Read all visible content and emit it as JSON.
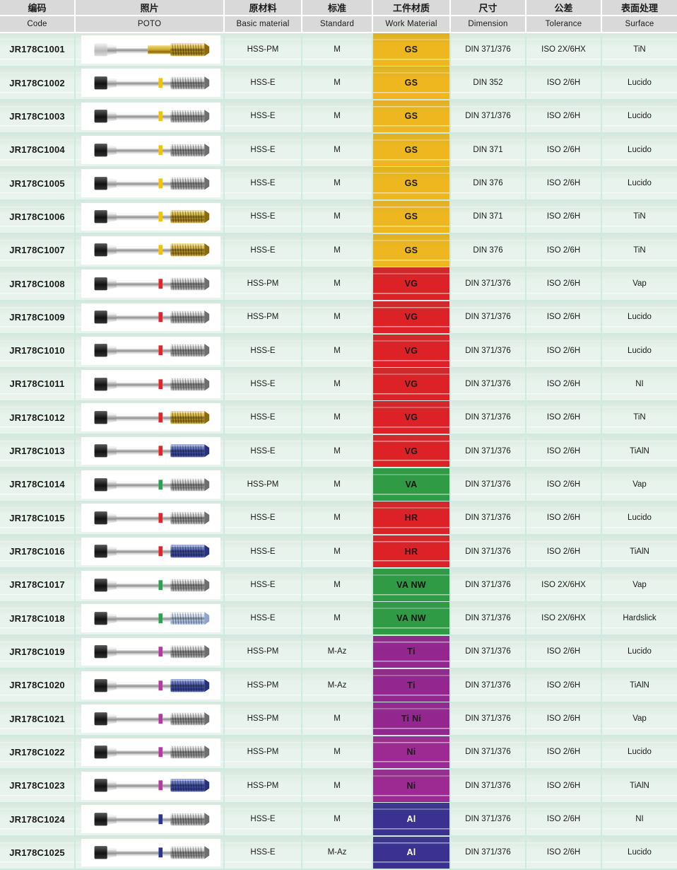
{
  "header": {
    "columns": [
      {
        "zh": "编码",
        "en": "Code"
      },
      {
        "zh": "照片",
        "en": "POTO"
      },
      {
        "zh": "原材料",
        "en": "Basic material"
      },
      {
        "zh": "标准",
        "en": "Standard"
      },
      {
        "zh": "工件材质",
        "en": "Work Material"
      },
      {
        "zh": "尺寸",
        "en": "Dimension"
      },
      {
        "zh": "公差",
        "en": "Tolerance"
      },
      {
        "zh": "表面处理",
        "en": "Surface"
      }
    ]
  },
  "palette": {
    "header_bg": "#d9d9d9",
    "row_bg": "#e7f3ec",
    "grid_line": "#cdebe1",
    "work_materials": {
      "GS": {
        "bg": "#eeb71f",
        "text": "#1c1c1c"
      },
      "VG": {
        "bg": "#dc2127",
        "text": "#1c1c1c"
      },
      "HR": {
        "bg": "#dc2127",
        "text": "#1c1c1c"
      },
      "VA": {
        "bg": "#2f9b45",
        "text": "#111111"
      },
      "VA NW": {
        "bg": "#2f9b45",
        "text": "#111111"
      },
      "Ti": {
        "bg": "#93278f",
        "text": "#1c1c1c"
      },
      "Ti Ni": {
        "bg": "#93278f",
        "text": "#1c1c1c"
      },
      "Ni": {
        "bg": "#9c2a92",
        "text": "#1c1c1c"
      },
      "Al": {
        "bg": "#3a3191",
        "text": "#ffffff"
      }
    },
    "rings": {
      "yellow": "#f2c400",
      "red": "#e3242b",
      "green": "#2ba24f",
      "purple": "#b5399f",
      "navy": "#2b3590"
    },
    "tips": {
      "silver": {
        "dark": "#6e6e6e"
      },
      "gold": {
        "dark": "#8a6a10"
      },
      "blue": {
        "dark": "#27327a"
      },
      "lightblue": {
        "dark": "#8fa6cc"
      }
    }
  },
  "rows": [
    {
      "code": "JR178C1001",
      "basic_material": "HSS-PM",
      "standard": "M",
      "work_material": "GS",
      "dimension": "DIN 371/376",
      "tolerance": "ISO 2X/6HX",
      "surface": "TiN",
      "photo": {
        "shank": "light",
        "ring": "none",
        "tip": "gold",
        "coated": true
      }
    },
    {
      "code": "JR178C1002",
      "basic_material": "HSS-E",
      "standard": "M",
      "work_material": "GS",
      "dimension": "DIN 352",
      "tolerance": "ISO 2/6H",
      "surface": "Lucido",
      "photo": {
        "shank": "dark",
        "ring": "yellow",
        "tip": "silver",
        "coated": false
      }
    },
    {
      "code": "JR178C1003",
      "basic_material": "HSS-E",
      "standard": "M",
      "work_material": "GS",
      "dimension": "DIN 371/376",
      "tolerance": "ISO 2/6H",
      "surface": "Lucido",
      "photo": {
        "shank": "dark",
        "ring": "yellow",
        "tip": "silver",
        "coated": false
      }
    },
    {
      "code": "JR178C1004",
      "basic_material": "HSS-E",
      "standard": "M",
      "work_material": "GS",
      "dimension": "DIN 371",
      "tolerance": "ISO 2/6H",
      "surface": "Lucido",
      "photo": {
        "shank": "dark",
        "ring": "yellow",
        "tip": "silver",
        "coated": false
      }
    },
    {
      "code": "JR178C1005",
      "basic_material": "HSS-E",
      "standard": "M",
      "work_material": "GS",
      "dimension": "DIN 376",
      "tolerance": "ISO 2/6H",
      "surface": "Lucido",
      "photo": {
        "shank": "dark",
        "ring": "yellow",
        "tip": "silver",
        "coated": false
      }
    },
    {
      "code": "JR178C1006",
      "basic_material": "HSS-E",
      "standard": "M",
      "work_material": "GS",
      "dimension": "DIN 371",
      "tolerance": "ISO 2/6H",
      "surface": "TiN",
      "photo": {
        "shank": "dark",
        "ring": "yellow",
        "tip": "gold",
        "coated": false
      }
    },
    {
      "code": "JR178C1007",
      "basic_material": "HSS-E",
      "standard": "M",
      "work_material": "GS",
      "dimension": "DIN 376",
      "tolerance": "ISO 2/6H",
      "surface": "TiN",
      "photo": {
        "shank": "dark",
        "ring": "yellow",
        "tip": "gold",
        "coated": false
      }
    },
    {
      "code": "JR178C1008",
      "basic_material": "HSS-PM",
      "standard": "M",
      "work_material": "VG",
      "dimension": "DIN 371/376",
      "tolerance": "ISO 2/6H",
      "surface": "Vap",
      "photo": {
        "shank": "dark",
        "ring": "red",
        "tip": "silver",
        "coated": false
      }
    },
    {
      "code": "JR178C1009",
      "basic_material": "HSS-PM",
      "standard": "M",
      "work_material": "VG",
      "dimension": "DIN 371/376",
      "tolerance": "ISO 2/6H",
      "surface": "Lucido",
      "photo": {
        "shank": "dark",
        "ring": "red",
        "tip": "silver",
        "coated": false
      }
    },
    {
      "code": "JR178C1010",
      "basic_material": "HSS-E",
      "standard": "M",
      "work_material": "VG",
      "dimension": "DIN 371/376",
      "tolerance": "ISO 2/6H",
      "surface": "Lucido",
      "photo": {
        "shank": "dark",
        "ring": "red",
        "tip": "silver",
        "coated": false
      }
    },
    {
      "code": "JR178C1011",
      "basic_material": "HSS-E",
      "standard": "M",
      "work_material": "VG",
      "dimension": "DIN 371/376",
      "tolerance": "ISO 2/6H",
      "surface": "NI",
      "photo": {
        "shank": "dark",
        "ring": "red",
        "tip": "silver",
        "coated": false
      }
    },
    {
      "code": "JR178C1012",
      "basic_material": "HSS-E",
      "standard": "M",
      "work_material": "VG",
      "dimension": "DIN 371/376",
      "tolerance": "ISO 2/6H",
      "surface": "TiN",
      "photo": {
        "shank": "dark",
        "ring": "red",
        "tip": "gold",
        "coated": false
      }
    },
    {
      "code": "JR178C1013",
      "basic_material": "HSS-E",
      "standard": "M",
      "work_material": "VG",
      "dimension": "DIN 371/376",
      "tolerance": "ISO 2/6H",
      "surface": "TiAlN",
      "photo": {
        "shank": "dark",
        "ring": "red",
        "tip": "blue",
        "coated": false
      }
    },
    {
      "code": "JR178C1014",
      "basic_material": "HSS-PM",
      "standard": "M",
      "work_material": "VA",
      "dimension": "DIN 371/376",
      "tolerance": "ISO 2/6H",
      "surface": "Vap",
      "photo": {
        "shank": "dark",
        "ring": "green",
        "tip": "silver",
        "coated": false
      }
    },
    {
      "code": "JR178C1015",
      "basic_material": "HSS-E",
      "standard": "M",
      "work_material": "HR",
      "dimension": "DIN 371/376",
      "tolerance": "ISO 2/6H",
      "surface": "Lucido",
      "photo": {
        "shank": "dark",
        "ring": "red",
        "tip": "silver",
        "coated": false
      }
    },
    {
      "code": "JR178C1016",
      "basic_material": "HSS-E",
      "standard": "M",
      "work_material": "HR",
      "dimension": "DIN 371/376",
      "tolerance": "ISO 2/6H",
      "surface": "TiAlN",
      "photo": {
        "shank": "dark",
        "ring": "red",
        "tip": "blue",
        "coated": false
      }
    },
    {
      "code": "JR178C1017",
      "basic_material": "HSS-E",
      "standard": "M",
      "work_material": "VA NW",
      "dimension": "DIN 371/376",
      "tolerance": "ISO 2X/6HX",
      "surface": "Vap",
      "photo": {
        "shank": "dark",
        "ring": "green",
        "tip": "silver",
        "coated": false
      }
    },
    {
      "code": "JR178C1018",
      "basic_material": "HSS-E",
      "standard": "M",
      "work_material": "VA NW",
      "dimension": "DIN 371/376",
      "tolerance": "ISO 2X/6HX",
      "surface": "Hardslick",
      "photo": {
        "shank": "dark",
        "ring": "green",
        "tip": "lightblue",
        "coated": false
      }
    },
    {
      "code": "JR178C1019",
      "basic_material": "HSS-PM",
      "standard": "M-Az",
      "work_material": "Ti",
      "dimension": "DIN 371/376",
      "tolerance": "ISO 2/6H",
      "surface": "Lucido",
      "photo": {
        "shank": "dark",
        "ring": "purple",
        "tip": "silver",
        "coated": false
      }
    },
    {
      "code": "JR178C1020",
      "basic_material": "HSS-PM",
      "standard": "M-Az",
      "work_material": "Ti",
      "dimension": "DIN 371/376",
      "tolerance": "ISO 2/6H",
      "surface": "TiAlN",
      "photo": {
        "shank": "dark",
        "ring": "purple",
        "tip": "blue",
        "coated": false
      }
    },
    {
      "code": "JR178C1021",
      "basic_material": "HSS-PM",
      "standard": "M",
      "work_material": "Ti Ni",
      "dimension": "DIN 371/376",
      "tolerance": "ISO 2/6H",
      "surface": "Vap",
      "photo": {
        "shank": "dark",
        "ring": "purple",
        "tip": "silver",
        "coated": false
      }
    },
    {
      "code": "JR178C1022",
      "basic_material": "HSS-PM",
      "standard": "M",
      "work_material": "Ni",
      "dimension": "DIN 371/376",
      "tolerance": "ISO 2/6H",
      "surface": "Lucido",
      "photo": {
        "shank": "dark",
        "ring": "purple",
        "tip": "silver",
        "coated": false
      }
    },
    {
      "code": "JR178C1023",
      "basic_material": "HSS-PM",
      "standard": "M",
      "work_material": "Ni",
      "dimension": "DIN 371/376",
      "tolerance": "ISO 2/6H",
      "surface": "TiAlN",
      "photo": {
        "shank": "dark",
        "ring": "purple",
        "tip": "blue",
        "coated": false
      }
    },
    {
      "code": "JR178C1024",
      "basic_material": "HSS-E",
      "standard": "M",
      "work_material": "Al",
      "dimension": "DIN 371/376",
      "tolerance": "ISO 2/6H",
      "surface": "NI",
      "photo": {
        "shank": "dark",
        "ring": "navy",
        "tip": "silver",
        "coated": false
      }
    },
    {
      "code": "JR178C1025",
      "basic_material": "HSS-E",
      "standard": "M-Az",
      "work_material": "Al",
      "dimension": "DIN 371/376",
      "tolerance": "ISO 2/6H",
      "surface": "Lucido",
      "photo": {
        "shank": "dark",
        "ring": "navy",
        "tip": "silver",
        "coated": false
      }
    }
  ]
}
